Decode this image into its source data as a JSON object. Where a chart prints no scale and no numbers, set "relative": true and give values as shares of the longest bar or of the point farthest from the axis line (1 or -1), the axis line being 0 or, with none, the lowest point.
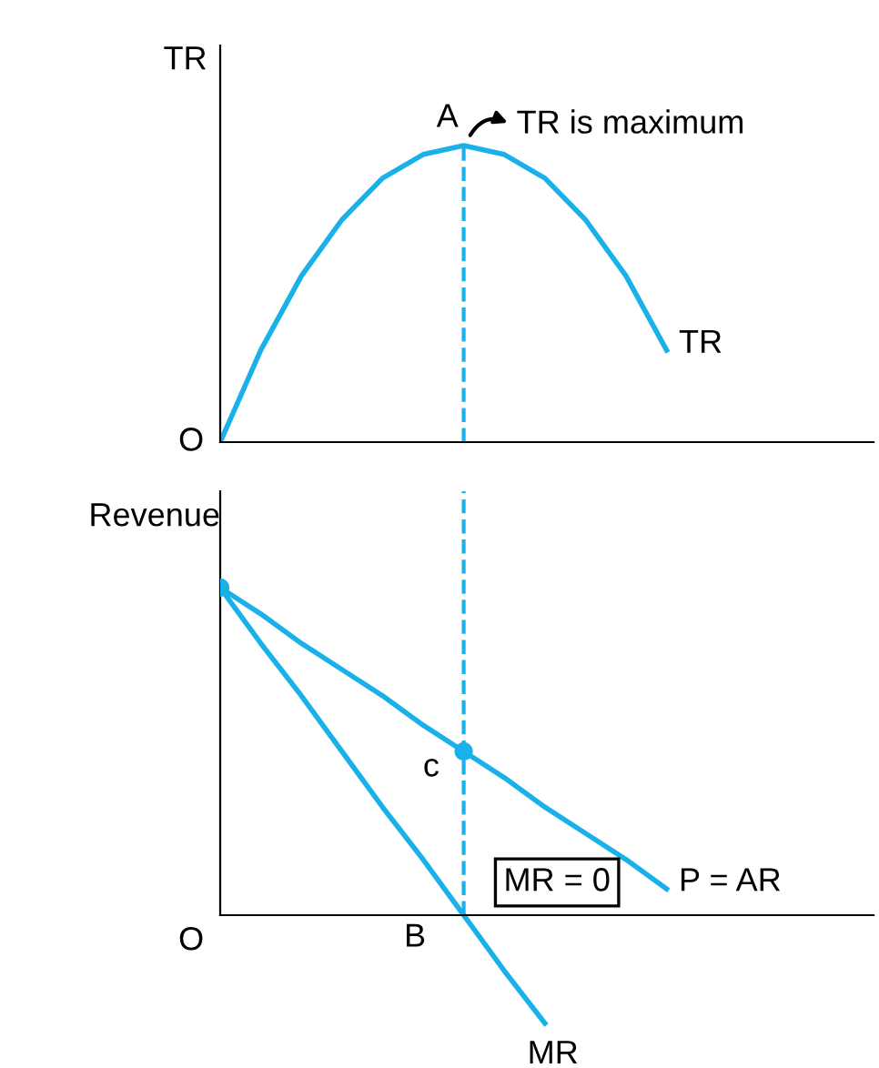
{
  "chart_data": [
    {
      "type": "line",
      "relative": true,
      "ylabel": "TR",
      "categories": [
        null,
        null,
        null,
        null,
        null,
        null,
        null,
        null,
        null,
        null,
        null,
        null
      ],
      "series": [
        {
          "name": "TR",
          "color": "#1ab0e8",
          "values": [
            0,
            0.31,
            0.56,
            0.75,
            0.89,
            0.97,
            1,
            0.97,
            0.89,
            0.75,
            0.56,
            0.31
          ]
        }
      ],
      "annotations": [
        {
          "text": "A"
        },
        {
          "text": "TR is maximum"
        },
        {
          "text": "O"
        }
      ],
      "marker": "none",
      "line_style": "solid",
      "legend": false
    },
    {
      "type": "line",
      "relative": true,
      "ylabel": "Revenue",
      "categories": [
        null,
        null,
        null,
        null,
        null,
        null,
        null,
        null,
        null,
        null,
        null,
        null
      ],
      "series": [
        {
          "name": "P = AR",
          "color": "#1ab0e8",
          "values": [
            1,
            0.92,
            0.83,
            0.75,
            0.67,
            0.58,
            0.5,
            0.42,
            0.33,
            0.25,
            0.17,
            0.08
          ]
        },
        {
          "name": "MR",
          "color": "#1ab0e8",
          "values": [
            1,
            0.83,
            0.67,
            0.5,
            0.33,
            0.17,
            0,
            -0.17,
            -0.33,
            null,
            null,
            null
          ]
        },
        {
          "type": "scatter",
          "marker": "circle",
          "color": "#1ab0e8",
          "values": [
            1,
            null,
            null,
            null,
            null,
            null,
            0.5,
            null,
            null,
            null,
            null,
            null
          ]
        }
      ],
      "annotations": [
        {
          "text": "c"
        },
        {
          "text": "B"
        },
        {
          "text": "MR = 0"
        },
        {
          "text": "O"
        }
      ],
      "marker": "none",
      "line_style": "solid",
      "legend": false
    }
  ]
}
